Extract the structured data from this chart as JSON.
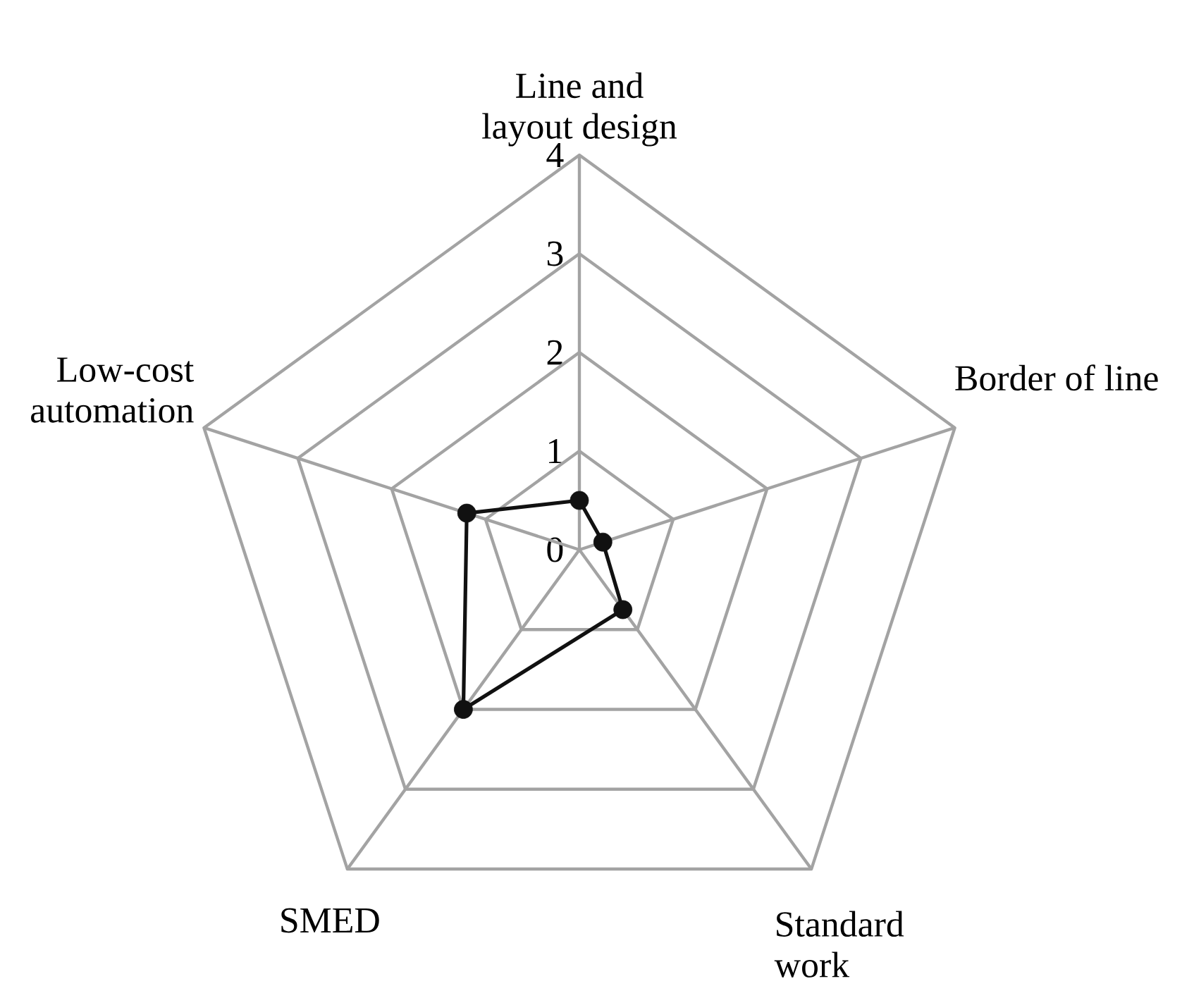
{
  "chart_data": {
    "type": "radar",
    "categories": [
      "Line and layout design",
      "Border of line",
      "Standard work",
      "SMED",
      "Low-cost automation"
    ],
    "series": [
      {
        "color": "#111111",
        "values": [
          0.5,
          0.25,
          0.75,
          2,
          1.2
        ]
      }
    ],
    "ylim": [
      0,
      4
    ],
    "yticks": [
      0,
      1,
      2,
      3,
      4
    ],
    "grid": true,
    "marker": "circle",
    "line_style": "solid"
  }
}
